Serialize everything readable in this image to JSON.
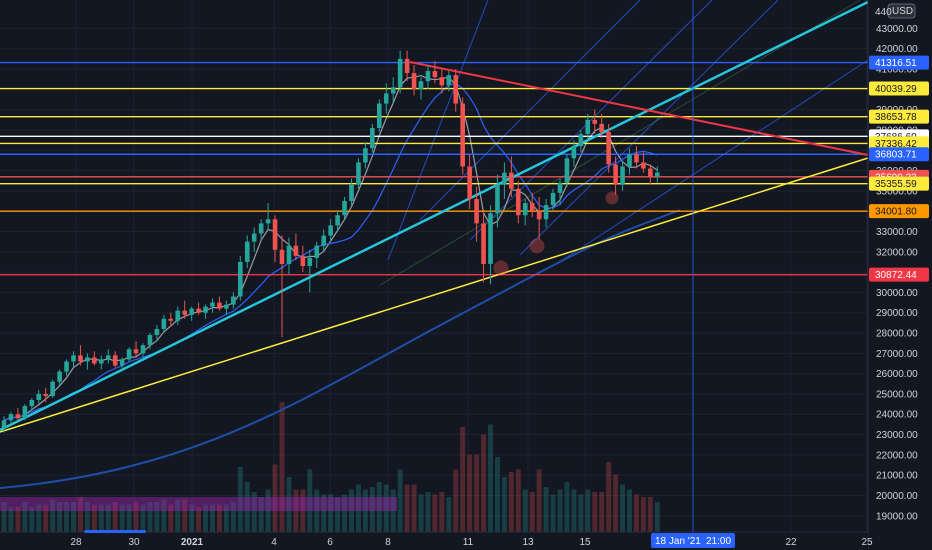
{
  "currency": "USD",
  "colors": {
    "background": "#131722",
    "grid": "#1e222d",
    "up": "#26a69a",
    "down": "#ef5350",
    "axis_text": "#d1d4dc",
    "cyan_trend": "#26c6da",
    "yellow_trend": "#ffeb3b",
    "red_trend": "#f23645",
    "fib_blue": "#2962ff",
    "ma_short": "#b2b5be",
    "ma_mid": "#2962ff",
    "ma_long": "#1e4fa8"
  },
  "chart_data": {
    "type": "candlestick",
    "symbol_currency": "USD",
    "ylim": [
      18200,
      44400
    ],
    "y_ticks": [
      19000,
      20000,
      21000,
      22000,
      23000,
      24000,
      25000,
      26000,
      27000,
      28000,
      29000,
      30000,
      31000,
      32000,
      33000,
      34000,
      35000,
      36000,
      37000,
      38000,
      39000,
      40000,
      41000,
      42000,
      43000
    ],
    "y_tick_labels": [
      "19000.00",
      "20000.00",
      "21000.00",
      "22000.00",
      "23000.00",
      "24000.00",
      "25000.00",
      "26000.00",
      "27000.00",
      "28000.00",
      "29000.00",
      "30000.00",
      "31000.00",
      "32000.00",
      "33000.00",
      "34000.00",
      "35000.00",
      "36000.00",
      "37000.00",
      "38000.00",
      "39000.00",
      "40000.00",
      "41000.00",
      "42000.00",
      "43000.00"
    ],
    "y_top_partial_label": "440",
    "x_tick_labels": [
      "28",
      "30",
      "2021",
      "4",
      "6",
      "8",
      "11",
      "13",
      "15",
      "22",
      "25"
    ],
    "crosshair_x_label": "18 Jan '21",
    "crosshair_time_label": "21:00",
    "x_start": "2020-12-26",
    "candle_interval_hours": 4,
    "candles": [
      {
        "o": 23300,
        "h": 23900,
        "l": 23100,
        "c": 23700
      },
      {
        "o": 23700,
        "h": 24100,
        "l": 23500,
        "c": 24000
      },
      {
        "o": 24000,
        "h": 24300,
        "l": 23700,
        "c": 23800
      },
      {
        "o": 23800,
        "h": 24500,
        "l": 23700,
        "c": 24400
      },
      {
        "o": 24400,
        "h": 24800,
        "l": 24200,
        "c": 24700
      },
      {
        "o": 24700,
        "h": 25200,
        "l": 24500,
        "c": 25000
      },
      {
        "o": 25000,
        "h": 25300,
        "l": 24600,
        "c": 24900
      },
      {
        "o": 24900,
        "h": 25700,
        "l": 24800,
        "c": 25600
      },
      {
        "o": 25600,
        "h": 26200,
        "l": 25400,
        "c": 26100
      },
      {
        "o": 26100,
        "h": 26700,
        "l": 25900,
        "c": 26600
      },
      {
        "o": 26600,
        "h": 27100,
        "l": 26300,
        "c": 26900
      },
      {
        "o": 26900,
        "h": 27400,
        "l": 26400,
        "c": 26600
      },
      {
        "o": 26600,
        "h": 27000,
        "l": 26200,
        "c": 26800
      },
      {
        "o": 26800,
        "h": 27100,
        "l": 26400,
        "c": 26500
      },
      {
        "o": 26500,
        "h": 26900,
        "l": 26200,
        "c": 26700
      },
      {
        "o": 26700,
        "h": 27200,
        "l": 26500,
        "c": 26900
      },
      {
        "o": 26900,
        "h": 27100,
        "l": 26300,
        "c": 26400
      },
      {
        "o": 26400,
        "h": 26800,
        "l": 26100,
        "c": 26700
      },
      {
        "o": 26700,
        "h": 27300,
        "l": 26600,
        "c": 27200
      },
      {
        "o": 27200,
        "h": 27600,
        "l": 26800,
        "c": 27000
      },
      {
        "o": 27000,
        "h": 27500,
        "l": 26800,
        "c": 27400
      },
      {
        "o": 27400,
        "h": 28000,
        "l": 27200,
        "c": 27900
      },
      {
        "o": 27900,
        "h": 28400,
        "l": 27600,
        "c": 28200
      },
      {
        "o": 28200,
        "h": 28900,
        "l": 28000,
        "c": 28700
      },
      {
        "o": 28700,
        "h": 29000,
        "l": 28300,
        "c": 28600
      },
      {
        "o": 28600,
        "h": 29300,
        "l": 28400,
        "c": 29100
      },
      {
        "o": 29100,
        "h": 29600,
        "l": 28700,
        "c": 28900
      },
      {
        "o": 28900,
        "h": 29300,
        "l": 28600,
        "c": 29200
      },
      {
        "o": 29200,
        "h": 29500,
        "l": 28900,
        "c": 29000
      },
      {
        "o": 29000,
        "h": 29400,
        "l": 28700,
        "c": 29300
      },
      {
        "o": 29300,
        "h": 29700,
        "l": 29000,
        "c": 29500
      },
      {
        "o": 29500,
        "h": 29800,
        "l": 29100,
        "c": 29200
      },
      {
        "o": 29200,
        "h": 29600,
        "l": 28900,
        "c": 29400
      },
      {
        "o": 29400,
        "h": 30000,
        "l": 29200,
        "c": 29800
      },
      {
        "o": 29800,
        "h": 31800,
        "l": 29600,
        "c": 31500
      },
      {
        "o": 31500,
        "h": 32800,
        "l": 31200,
        "c": 32500
      },
      {
        "o": 32500,
        "h": 33200,
        "l": 32000,
        "c": 32900
      },
      {
        "o": 32900,
        "h": 33600,
        "l": 32600,
        "c": 33400
      },
      {
        "o": 33400,
        "h": 34400,
        "l": 33100,
        "c": 33600
      },
      {
        "o": 33600,
        "h": 33800,
        "l": 31500,
        "c": 32100
      },
      {
        "o": 32100,
        "h": 32800,
        "l": 27800,
        "c": 31400
      },
      {
        "o": 31400,
        "h": 32700,
        "l": 30900,
        "c": 32300
      },
      {
        "o": 32300,
        "h": 32900,
        "l": 31600,
        "c": 31800
      },
      {
        "o": 31800,
        "h": 32300,
        "l": 31000,
        "c": 31300
      },
      {
        "o": 31300,
        "h": 32100,
        "l": 30000,
        "c": 31700
      },
      {
        "o": 31700,
        "h": 32500,
        "l": 31200,
        "c": 32300
      },
      {
        "o": 32300,
        "h": 33100,
        "l": 32000,
        "c": 32800
      },
      {
        "o": 32800,
        "h": 33600,
        "l": 32500,
        "c": 33300
      },
      {
        "o": 33300,
        "h": 34000,
        "l": 33000,
        "c": 33800
      },
      {
        "o": 33800,
        "h": 34700,
        "l": 33600,
        "c": 34500
      },
      {
        "o": 34500,
        "h": 35600,
        "l": 34300,
        "c": 35300
      },
      {
        "o": 35300,
        "h": 36600,
        "l": 35100,
        "c": 36400
      },
      {
        "o": 36400,
        "h": 37400,
        "l": 36100,
        "c": 37100
      },
      {
        "o": 37100,
        "h": 38300,
        "l": 36900,
        "c": 38100
      },
      {
        "o": 38100,
        "h": 39500,
        "l": 37900,
        "c": 39300
      },
      {
        "o": 39300,
        "h": 40300,
        "l": 38800,
        "c": 39800
      },
      {
        "o": 39800,
        "h": 40600,
        "l": 39300,
        "c": 40100
      },
      {
        "o": 40100,
        "h": 41900,
        "l": 39800,
        "c": 41500
      },
      {
        "o": 41500,
        "h": 41900,
        "l": 40400,
        "c": 40800
      },
      {
        "o": 40800,
        "h": 41200,
        "l": 39700,
        "c": 40000
      },
      {
        "o": 40000,
        "h": 40600,
        "l": 39500,
        "c": 40400
      },
      {
        "o": 40400,
        "h": 41200,
        "l": 40000,
        "c": 40900
      },
      {
        "o": 40900,
        "h": 41400,
        "l": 40300,
        "c": 40600
      },
      {
        "o": 40600,
        "h": 41000,
        "l": 39800,
        "c": 40200
      },
      {
        "o": 40200,
        "h": 40900,
        "l": 39900,
        "c": 40700
      },
      {
        "o": 40700,
        "h": 41000,
        "l": 38900,
        "c": 39300
      },
      {
        "o": 39300,
        "h": 39600,
        "l": 35800,
        "c": 36200
      },
      {
        "o": 36200,
        "h": 36800,
        "l": 34100,
        "c": 34600
      },
      {
        "o": 34600,
        "h": 35200,
        "l": 32500,
        "c": 33400
      },
      {
        "o": 33400,
        "h": 34000,
        "l": 30500,
        "c": 31400
      },
      {
        "o": 31400,
        "h": 34300,
        "l": 30400,
        "c": 33900
      },
      {
        "o": 33900,
        "h": 35800,
        "l": 33200,
        "c": 35300
      },
      {
        "o": 35300,
        "h": 36400,
        "l": 34600,
        "c": 35900
      },
      {
        "o": 35900,
        "h": 36700,
        "l": 34700,
        "c": 35100
      },
      {
        "o": 35100,
        "h": 35500,
        "l": 33400,
        "c": 33800
      },
      {
        "o": 33800,
        "h": 34600,
        "l": 33300,
        "c": 34400
      },
      {
        "o": 34400,
        "h": 34900,
        "l": 33700,
        "c": 34000
      },
      {
        "o": 34000,
        "h": 34700,
        "l": 32600,
        "c": 33600
      },
      {
        "o": 33600,
        "h": 34600,
        "l": 33200,
        "c": 34300
      },
      {
        "o": 34300,
        "h": 35100,
        "l": 34000,
        "c": 34900
      },
      {
        "o": 34900,
        "h": 35600,
        "l": 34300,
        "c": 35400
      },
      {
        "o": 35400,
        "h": 36800,
        "l": 35200,
        "c": 36600
      },
      {
        "o": 36600,
        "h": 37500,
        "l": 36200,
        "c": 37200
      },
      {
        "o": 37200,
        "h": 38000,
        "l": 36900,
        "c": 37800
      },
      {
        "o": 37800,
        "h": 38800,
        "l": 37500,
        "c": 38500
      },
      {
        "o": 38500,
        "h": 39000,
        "l": 37800,
        "c": 38300
      },
      {
        "o": 38300,
        "h": 38800,
        "l": 37600,
        "c": 37900
      },
      {
        "o": 37900,
        "h": 38300,
        "l": 35900,
        "c": 36300
      },
      {
        "o": 36300,
        "h": 36700,
        "l": 34800,
        "c": 35300
      },
      {
        "o": 35300,
        "h": 36500,
        "l": 35000,
        "c": 36200
      },
      {
        "o": 36200,
        "h": 37100,
        "l": 35800,
        "c": 36800
      },
      {
        "o": 36800,
        "h": 37200,
        "l": 36100,
        "c": 36400
      },
      {
        "o": 36400,
        "h": 36900,
        "l": 35900,
        "c": 36100
      },
      {
        "o": 36100,
        "h": 36300,
        "l": 35300,
        "c": 35700
      },
      {
        "o": 35700,
        "h": 36200,
        "l": 35400,
        "c": 35900
      }
    ],
    "horizontal_levels": [
      {
        "price": 41316.51,
        "label": "41316.51",
        "line_color": "#2962ff",
        "tag_bg": "#2962ff",
        "tag_fg": "#ffffff"
      },
      {
        "price": 40039.29,
        "label": "40039.29",
        "line_color": "#ffeb3b",
        "tag_bg": "#ffeb3b",
        "tag_fg": "#131722"
      },
      {
        "price": 38653.78,
        "label": "38653.78",
        "line_color": "#ffeb3b",
        "tag_bg": "#ffeb3b",
        "tag_fg": "#131722"
      },
      {
        "price": 37686.6,
        "label": "37686.60",
        "line_color": "#ffffff",
        "tag_bg": "#ffffff",
        "tag_fg": "#131722"
      },
      {
        "price": 37336.42,
        "label": "37336.42",
        "line_color": "#ffeb3b",
        "tag_bg": "#ffeb3b",
        "tag_fg": "#131722"
      },
      {
        "price": 36803.71,
        "label": "36803.71",
        "line_color": "#2962ff",
        "tag_bg": "#2962ff",
        "tag_fg": "#ffffff"
      },
      {
        "price": 35690.23,
        "label": "35690.23",
        "line_color": "#ef5350",
        "tag_bg": "#ef5350",
        "tag_fg": "#ffffff"
      },
      {
        "price": 35355.59,
        "label": "35355.59",
        "line_color": "#ffeb3b",
        "tag_bg": "#ffeb3b",
        "tag_fg": "#131722"
      },
      {
        "price": 34001.8,
        "label": "34001.80",
        "line_color": "#ff9800",
        "tag_bg": "#ff9800",
        "tag_fg": "#131722"
      },
      {
        "price": 30872.44,
        "label": "30872.44",
        "line_color": "#f23645",
        "tag_bg": "#f23645",
        "tag_fg": "#ffffff"
      }
    ]
  }
}
